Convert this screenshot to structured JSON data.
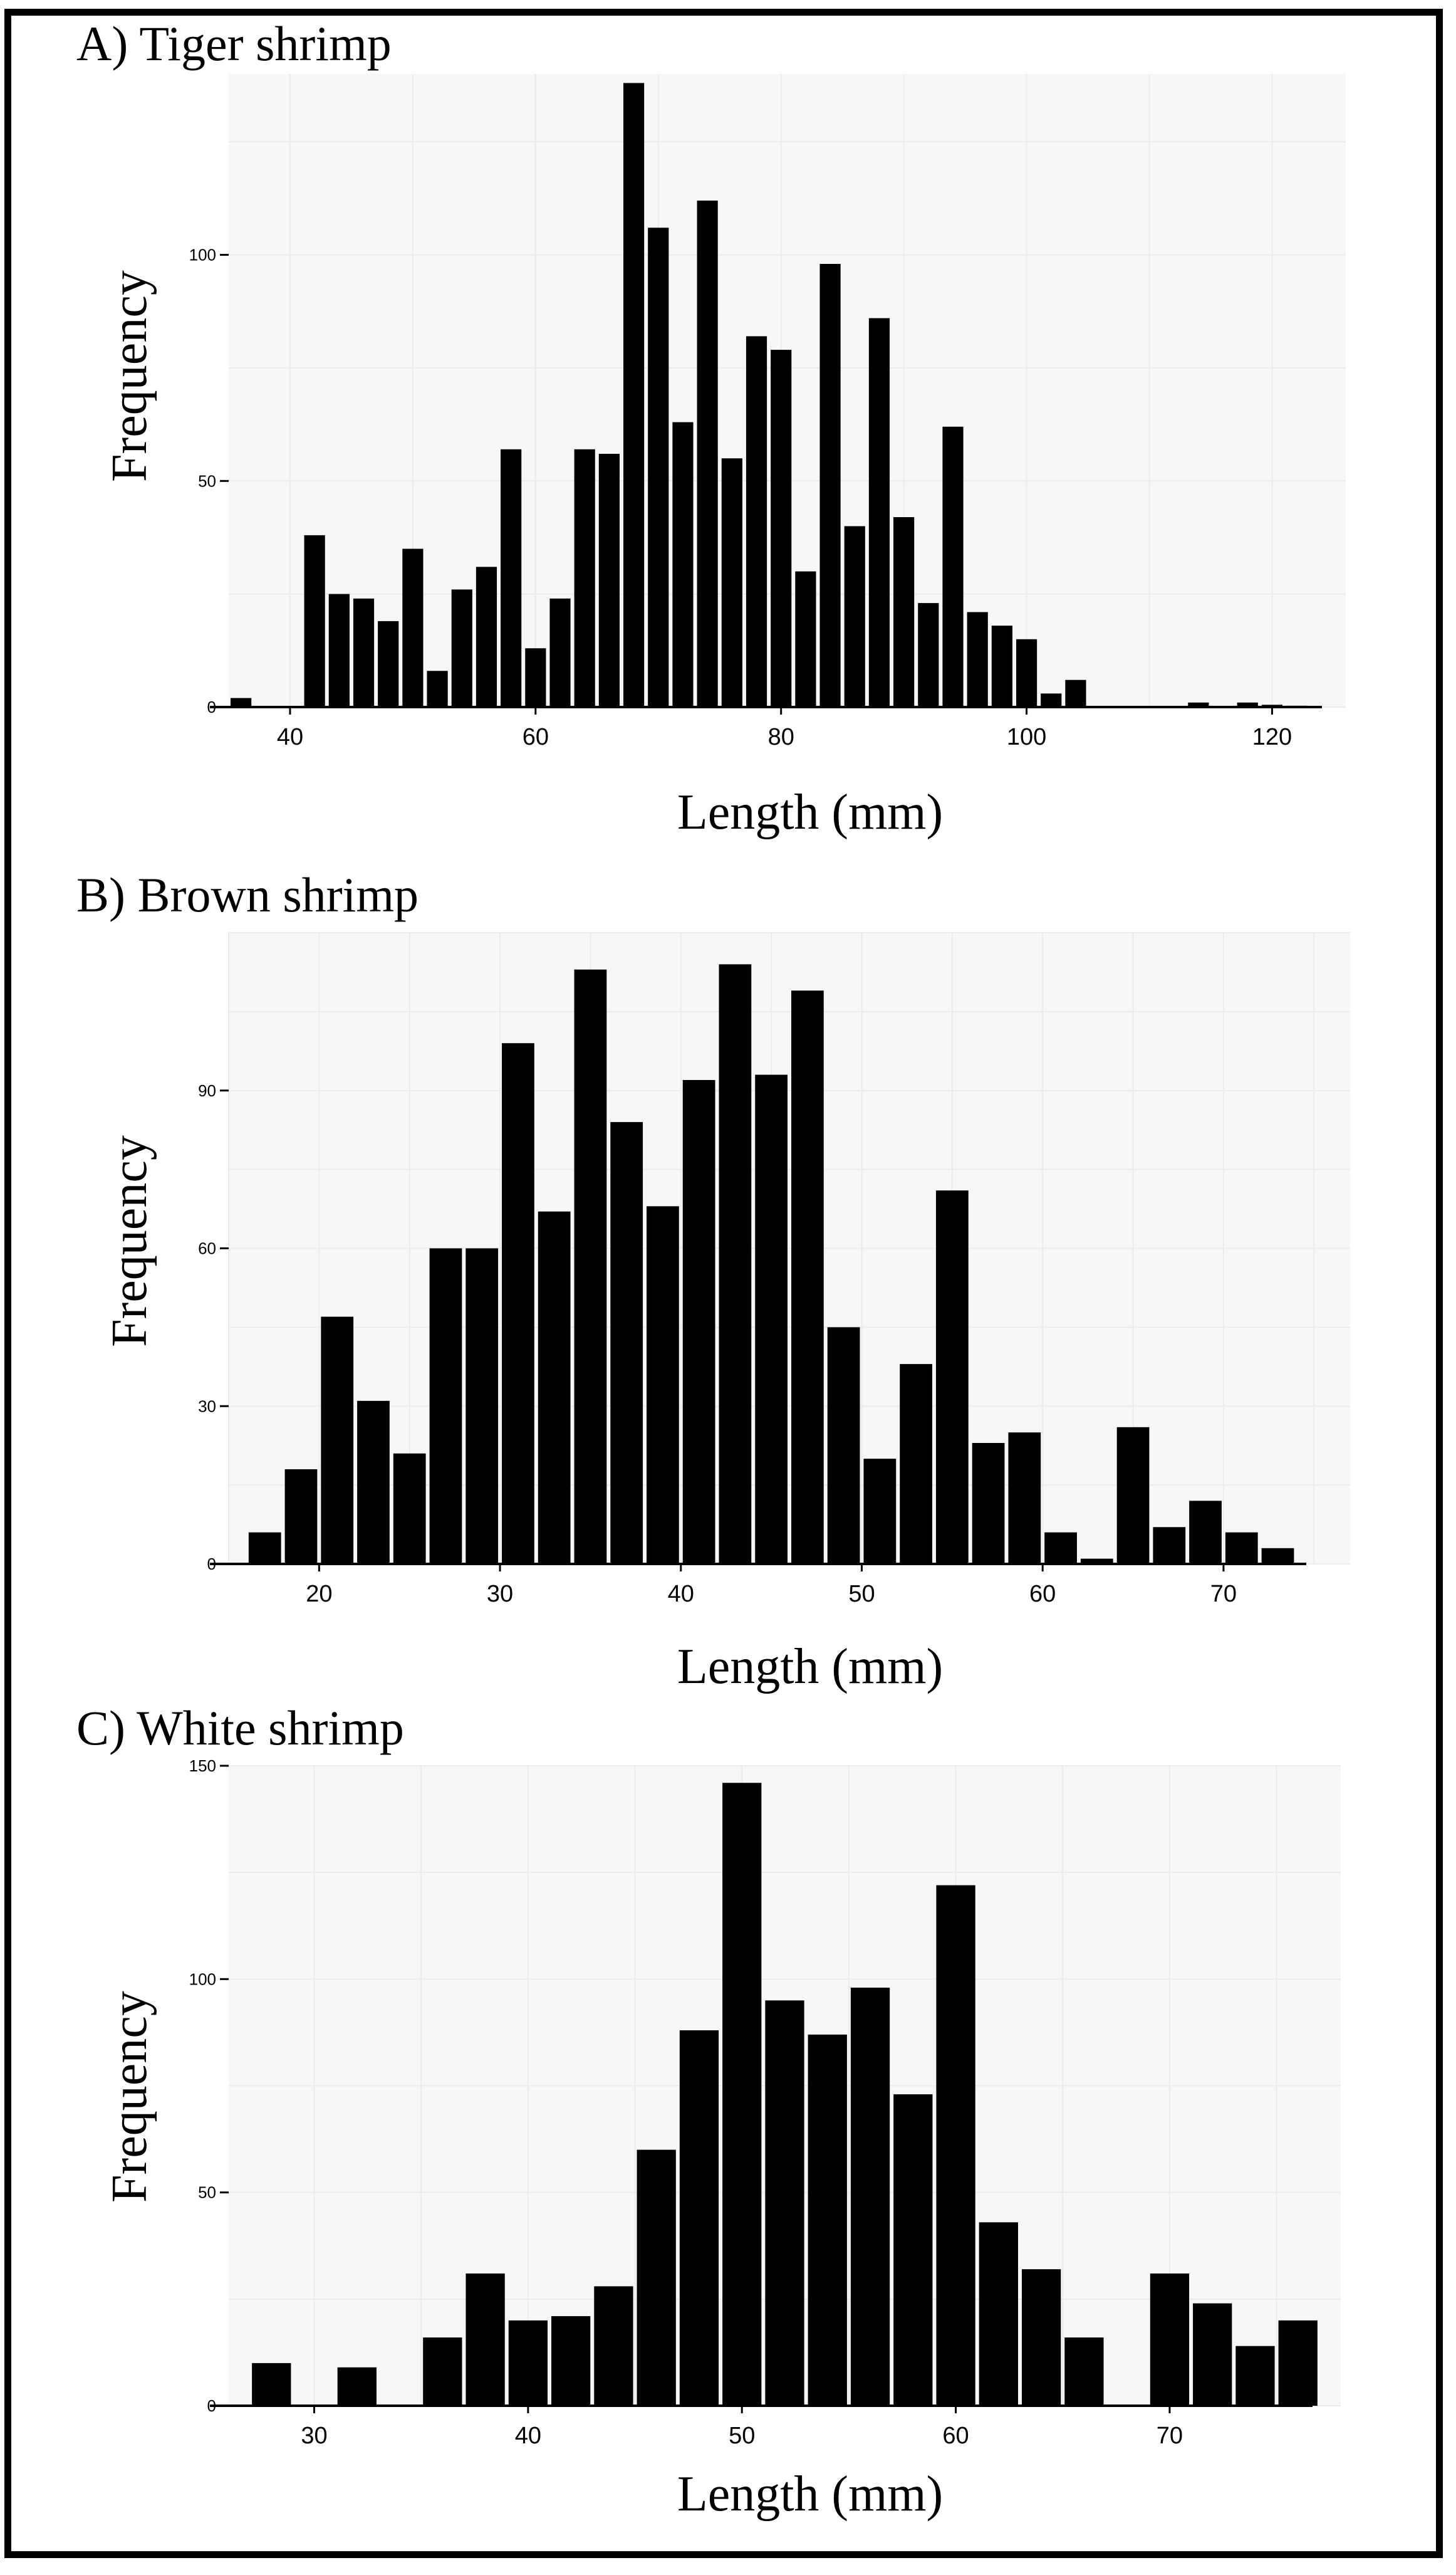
{
  "chart_data": [
    {
      "type": "bar",
      "title": "A) Tiger shrimp",
      "xlabel": "Length (mm)",
      "ylabel": "Frequency",
      "xlim": [
        35,
        126
      ],
      "ylim": [
        0,
        140
      ],
      "bin_width": 2,
      "xticks": [
        40,
        60,
        80,
        100,
        120
      ],
      "yticks": [
        0,
        50,
        100
      ],
      "x": [
        36,
        38,
        40,
        42,
        44,
        46,
        48,
        50,
        52,
        54,
        56,
        58,
        60,
        62,
        64,
        66,
        68,
        70,
        72,
        74,
        76,
        78,
        80,
        82,
        84,
        86,
        88,
        90,
        92,
        94,
        96,
        98,
        100,
        102,
        104,
        106,
        108,
        110,
        112,
        114,
        116,
        118,
        120,
        122,
        124
      ],
      "values": [
        2,
        0,
        0,
        38,
        25,
        24,
        19,
        35,
        8,
        26,
        31,
        57,
        13,
        24,
        57,
        56,
        138,
        106,
        63,
        112,
        55,
        82,
        79,
        30,
        98,
        40,
        86,
        42,
        23,
        62,
        21,
        18,
        15,
        3,
        6,
        0,
        0,
        0,
        0,
        1,
        0,
        1,
        0.5,
        0.3,
        0
      ],
      "grid": true,
      "background": "#f7f7f7",
      "bar_color": "#000000"
    },
    {
      "type": "bar",
      "title": "B) Brown shrimp",
      "xlabel": "Length (mm)",
      "ylabel": "Frequency",
      "xlim": [
        15,
        77
      ],
      "ylim": [
        0,
        120
      ],
      "bin_width": 2,
      "xticks": [
        20,
        30,
        40,
        50,
        60,
        70
      ],
      "yticks": [
        0,
        30,
        60,
        90
      ],
      "x": [
        17,
        19,
        21,
        23,
        25,
        27,
        29,
        31,
        33,
        35,
        37,
        39,
        41,
        43,
        45,
        47,
        49,
        51,
        53,
        55,
        57,
        59,
        61,
        63,
        65,
        67,
        69,
        71,
        73
      ],
      "values": [
        6,
        18,
        47,
        31,
        21,
        60,
        60,
        99,
        67,
        113,
        84,
        68,
        92,
        114,
        93,
        109,
        45,
        20,
        38,
        71,
        23,
        25,
        6,
        1,
        26,
        7,
        12,
        6,
        3
      ],
      "grid": true,
      "background": "#f7f7f7",
      "bar_color": "#000000"
    },
    {
      "type": "bar",
      "title": "C) White shrimp",
      "xlabel": "Length (mm)",
      "ylabel": "Frequency",
      "xlim": [
        26,
        78
      ],
      "ylim": [
        0,
        150
      ],
      "bin_width": 2,
      "xticks": [
        30,
        40,
        50,
        60,
        70
      ],
      "yticks": [
        0,
        50,
        100,
        150
      ],
      "x": [
        28,
        30,
        32,
        34,
        36,
        38,
        40,
        42,
        44,
        46,
        48,
        50,
        52,
        54,
        56,
        58,
        60,
        62,
        64,
        66,
        68,
        70,
        72,
        74,
        76
      ],
      "values": [
        10,
        0,
        9,
        0,
        16,
        31,
        20,
        21,
        28,
        60,
        88,
        146,
        95,
        87,
        98,
        73,
        122,
        43,
        32,
        16,
        0,
        31,
        24,
        14,
        20
      ],
      "grid": true,
      "background": "#f7f7f7",
      "bar_color": "#000000"
    }
  ]
}
